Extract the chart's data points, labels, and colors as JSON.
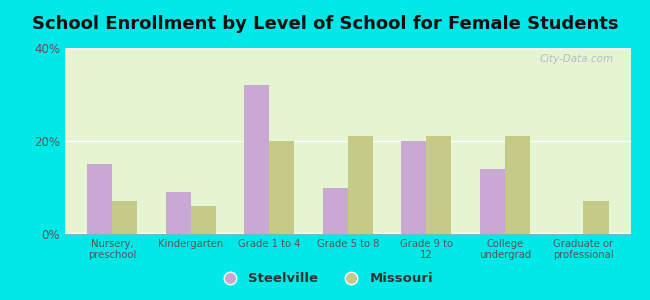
{
  "title": "School Enrollment by Level of School for Female Students",
  "categories": [
    "Nursery,\npreschool",
    "Kindergarten",
    "Grade 1 to 4",
    "Grade 5 to 8",
    "Grade 9 to\n12",
    "College\nundergrad",
    "Graduate or\nprofessional"
  ],
  "steelville": [
    15,
    9,
    32,
    10,
    20,
    14,
    0
  ],
  "missouri": [
    7,
    6,
    20,
    21,
    21,
    21,
    7
  ],
  "steelville_color": "#c9a8d4",
  "missouri_color": "#c5ca87",
  "background_outer": "#00e8e8",
  "background_inner": "#e8f2e4",
  "ylim": [
    0,
    40
  ],
  "yticks": [
    0,
    20,
    40
  ],
  "ytick_labels": [
    "0%",
    "20%",
    "40%"
  ],
  "bar_width": 0.32,
  "title_fontsize": 13,
  "legend_labels": [
    "Steelville",
    "Missouri"
  ],
  "watermark": "City-Data.com"
}
